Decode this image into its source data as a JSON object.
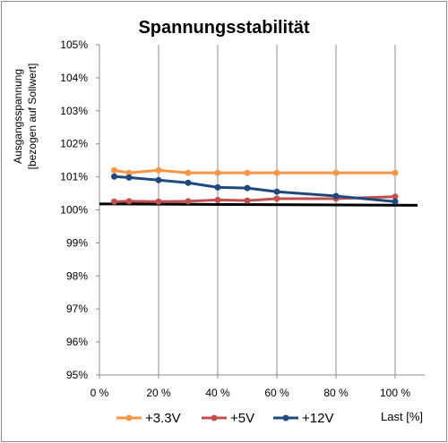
{
  "chart_data": {
    "type": "line",
    "title": "Spannungsstabilität",
    "ylabel_line1": "Ausgangsspannung",
    "ylabel_line2": "[bezogen auf Sollwert]",
    "xlabel": "Last [%]",
    "ylim": [
      95,
      105
    ],
    "xlim": [
      0,
      110
    ],
    "yticks": [
      95,
      96,
      97,
      98,
      99,
      100,
      101,
      102,
      103,
      104,
      105
    ],
    "ytick_labels": [
      "95%",
      "96%",
      "97%",
      "98%",
      "99%",
      "100%",
      "101%",
      "102%",
      "103%",
      "104%",
      "105%"
    ],
    "xticks": [
      0,
      20,
      40,
      60,
      80,
      100
    ],
    "xtick_labels": [
      "0 %",
      "20 %",
      "40 %",
      "60 %",
      "80 %",
      "100 %"
    ],
    "grid": "vertical",
    "legend_position": "bottom",
    "reference_line": 100.18,
    "series": [
      {
        "name": "+3.3V",
        "color": "#f79646",
        "x": [
          5,
          10,
          20,
          30,
          40,
          50,
          60,
          80,
          100
        ],
        "y": [
          101.2,
          101.12,
          101.2,
          101.12,
          101.12,
          101.12,
          101.12,
          101.12,
          101.12
        ]
      },
      {
        "name": "+5V",
        "color": "#c0504d",
        "x": [
          5,
          10,
          20,
          30,
          40,
          50,
          60,
          80,
          100
        ],
        "y": [
          100.25,
          100.26,
          100.25,
          100.26,
          100.3,
          100.28,
          100.34,
          100.34,
          100.4
        ]
      },
      {
        "name": "+12V",
        "color": "#1f497d",
        "x": [
          5,
          10,
          20,
          30,
          40,
          50,
          60,
          80,
          100
        ],
        "y": [
          101.01,
          100.98,
          100.9,
          100.82,
          100.68,
          100.66,
          100.55,
          100.42,
          100.25
        ]
      }
    ]
  }
}
